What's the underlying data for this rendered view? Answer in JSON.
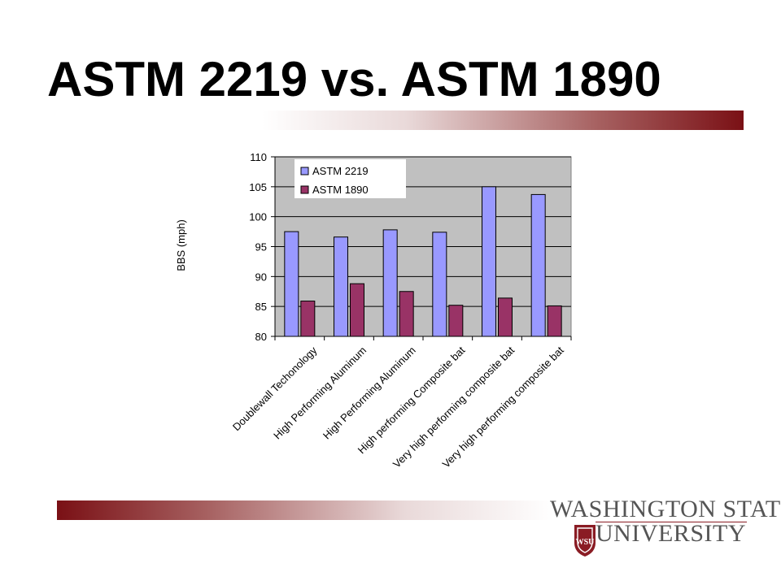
{
  "slide": {
    "title": "ASTM 2219 vs. ASTM 1890"
  },
  "logo": {
    "line1": "WASHINGTON STATE",
    "line2": "UNIVERSITY",
    "seal_letters": "WSU",
    "colors": {
      "crimson": "#8a1c24",
      "gray": "#555555"
    }
  },
  "chart_data": {
    "type": "bar",
    "title": "",
    "xlabel": "",
    "ylabel": "BBS (mph)",
    "ylim": [
      80,
      110
    ],
    "yticks": [
      80,
      85,
      90,
      95,
      100,
      105,
      110
    ],
    "grid": true,
    "legend": "top-left",
    "plot_background": "#c0c0c0",
    "categories": [
      "Doublewall Techonology",
      "High Performing Aluminum",
      "High Performing Aluminum",
      "High performing Composite bat",
      "Very high performing composite bat",
      "Very high performing composite bat"
    ],
    "series": [
      {
        "name": "ASTM 2219",
        "color": "#9999ff",
        "values": [
          97.5,
          96.6,
          97.8,
          97.4,
          105.0,
          103.7
        ]
      },
      {
        "name": "ASTM 1890",
        "color": "#993366",
        "values": [
          85.9,
          88.8,
          87.5,
          85.2,
          86.4,
          85.1
        ]
      }
    ]
  }
}
